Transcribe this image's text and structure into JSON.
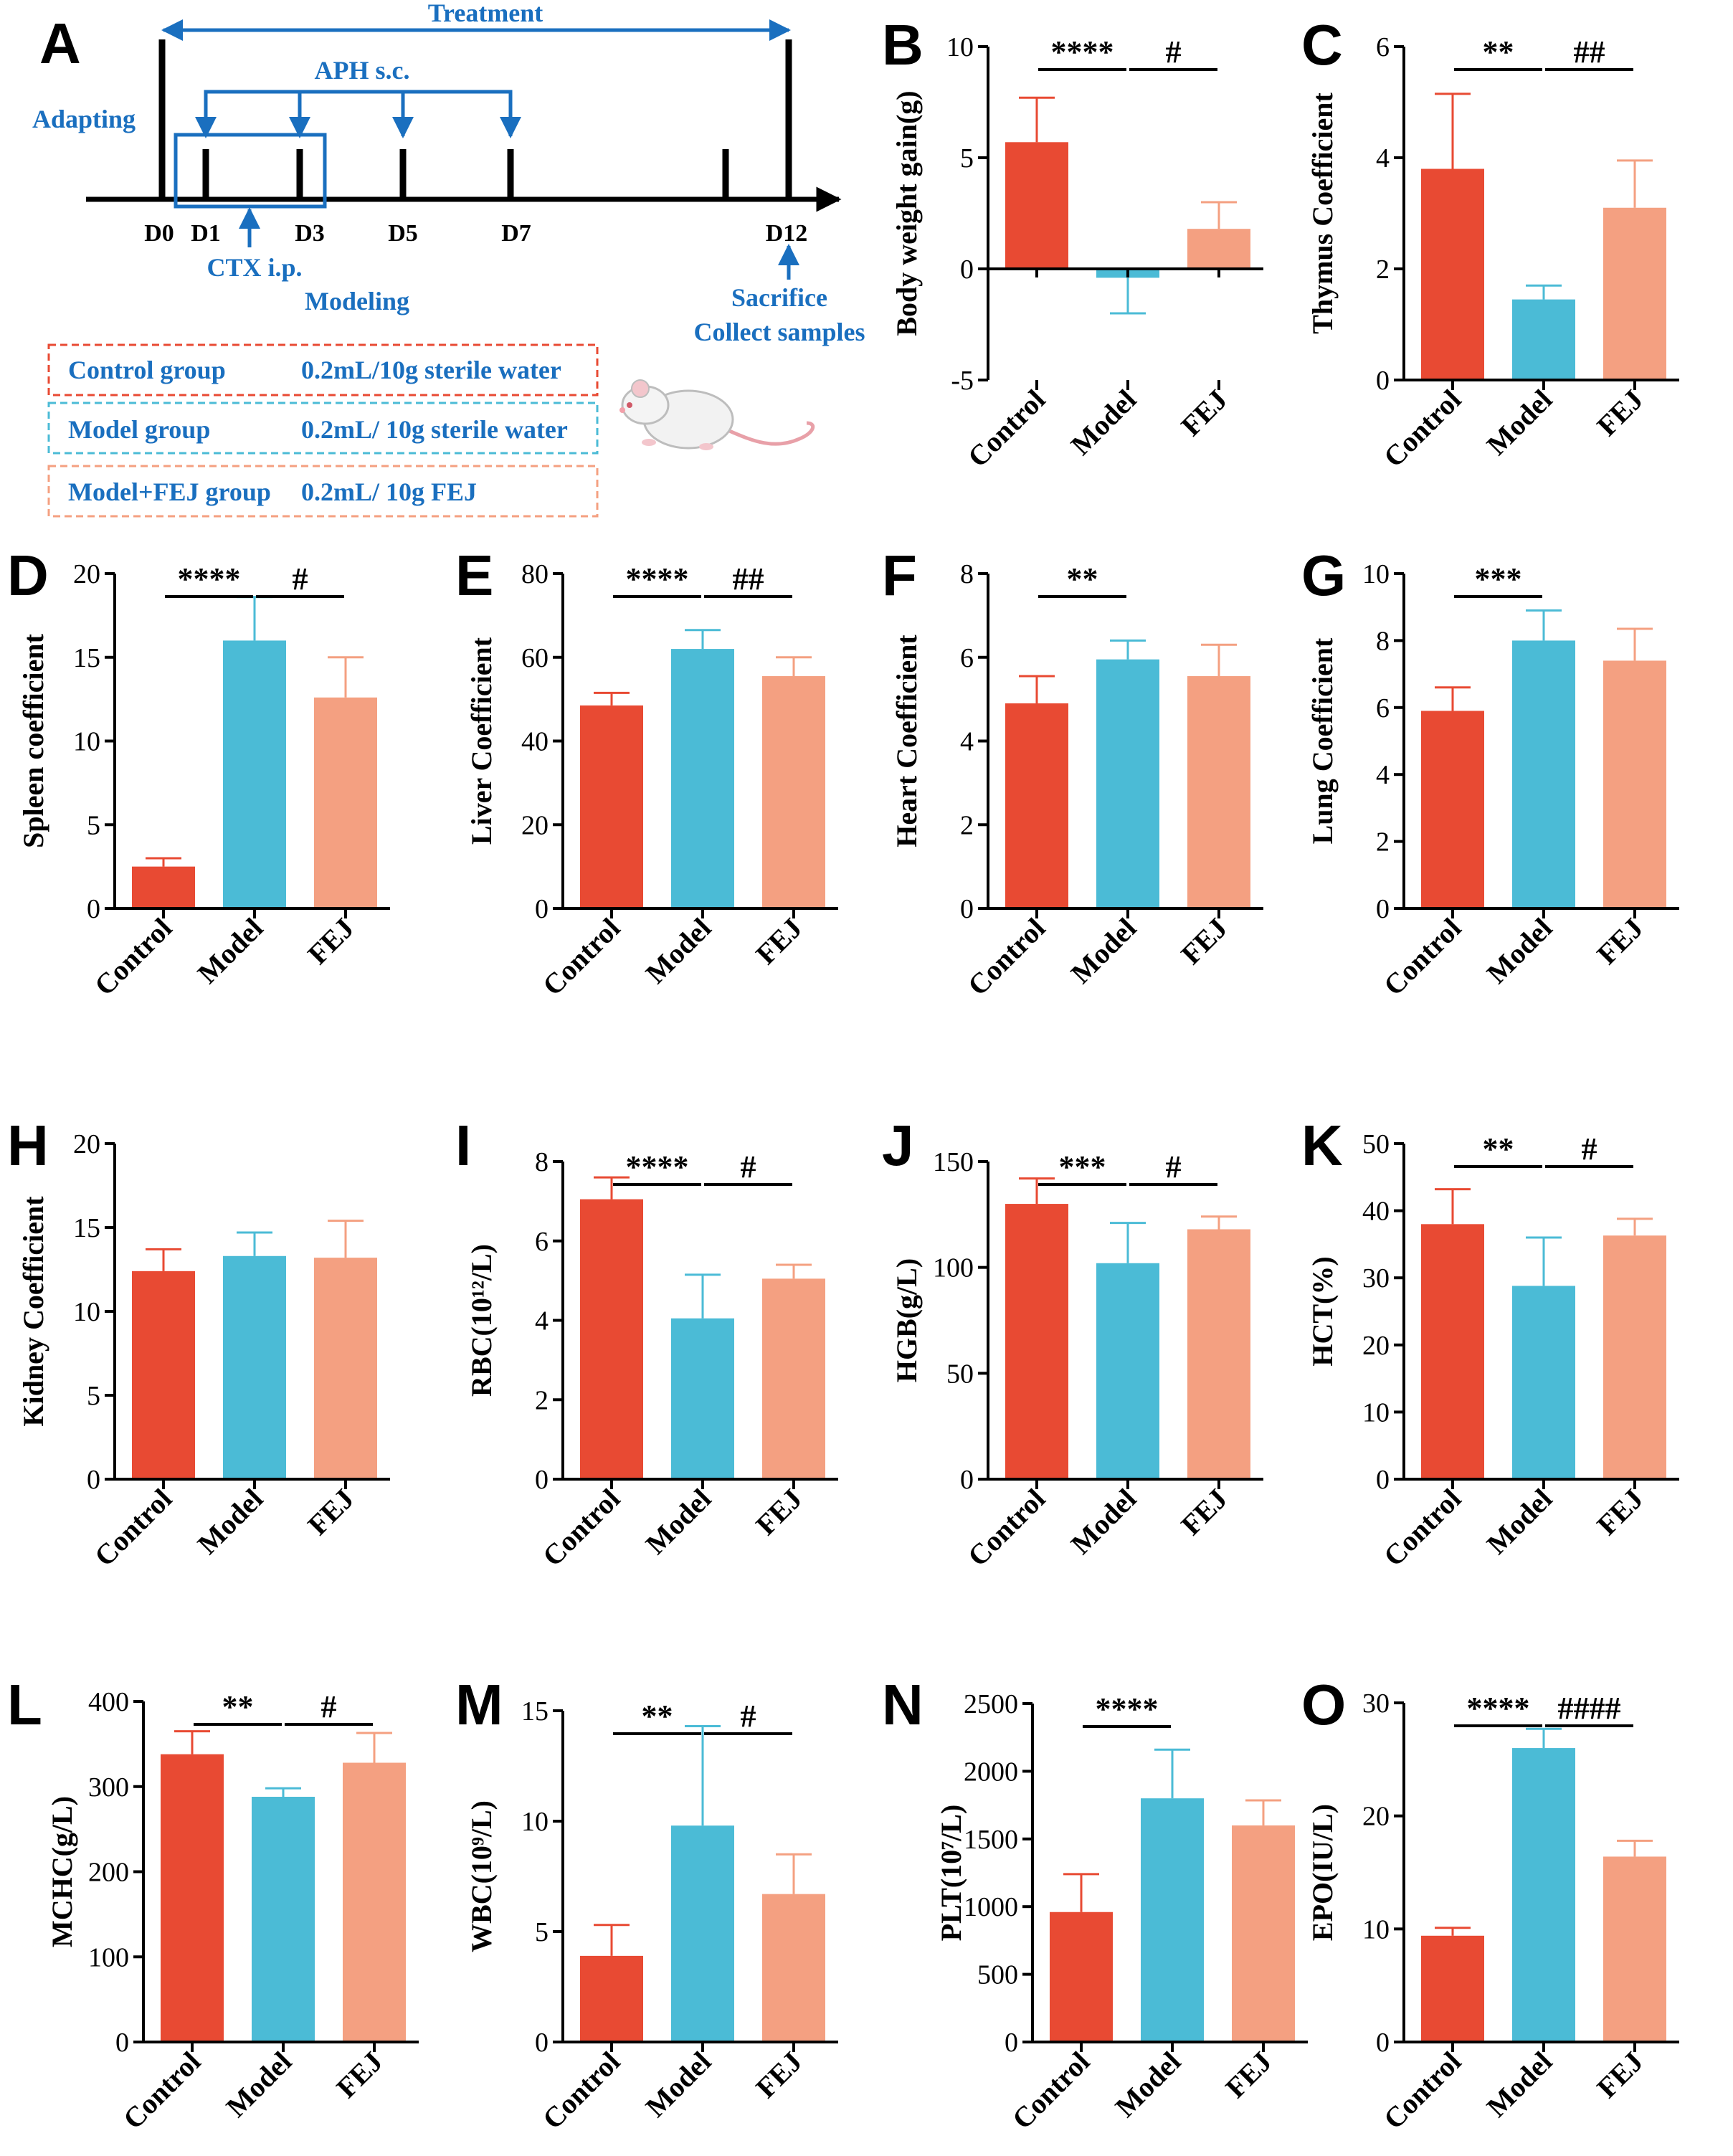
{
  "colors": {
    "control": "#e84a33",
    "model": "#4bbbd6",
    "fej": "#f4a081",
    "scheme_blue": "#1a6fbf",
    "box_control": "#e84a33",
    "box_model": "#4bbbd6",
    "box_fej": "#f4a081"
  },
  "scheme": {
    "letter": "A",
    "treatment": "Treatment",
    "aph": "APH  s.c.",
    "adapting": "Adapting",
    "ctx": "CTX i.p.",
    "modeling": "Modeling",
    "sacrifice": "Sacrifice",
    "collect": "Collect samples",
    "days": [
      "D0",
      "D1",
      "D3",
      "D5",
      "D7",
      "D12"
    ],
    "groups": [
      {
        "name": "Control group",
        "dose": "0.2mL/10g sterile water"
      },
      {
        "name": "Model group",
        "dose": "0.2mL/ 10g sterile water"
      },
      {
        "name": "Model+FEJ group",
        "dose": "0.2mL/ 10g FEJ"
      }
    ]
  },
  "chart_data": [
    {
      "letter": "B",
      "type": "bar",
      "ylabel": "Body weight gain(g)",
      "categories": [
        "Control",
        "Model",
        "FEJ"
      ],
      "values": [
        5.7,
        -0.4,
        1.8
      ],
      "errors": [
        2.0,
        1.6,
        1.2
      ],
      "ylim": [
        -5,
        10
      ],
      "yticks": [
        "-5",
        "0",
        "5",
        "10"
      ],
      "sig": [
        {
          "text": "****",
          "from": 0,
          "to": 1
        },
        {
          "text": "#",
          "from": 1,
          "to": 2
        }
      ]
    },
    {
      "letter": "C",
      "type": "bar",
      "ylabel": "Thymus Coefficient",
      "categories": [
        "Control",
        "Model",
        "FEJ"
      ],
      "values": [
        3.8,
        1.45,
        3.1
      ],
      "errors": [
        1.35,
        0.25,
        0.85
      ],
      "ylim": [
        0,
        6
      ],
      "yticks": [
        "0",
        "2",
        "4",
        "6"
      ],
      "sig": [
        {
          "text": "**",
          "from": 0,
          "to": 1
        },
        {
          "text": "##",
          "from": 1,
          "to": 2
        }
      ]
    },
    {
      "letter": "D",
      "type": "bar",
      "ylabel": "Spleen coefficient",
      "categories": [
        "Control",
        "Model",
        "FEJ"
      ],
      "values": [
        2.5,
        16.0,
        12.6
      ],
      "errors": [
        0.5,
        2.6,
        2.4
      ],
      "ylim": [
        0,
        20
      ],
      "yticks": [
        "0",
        "5",
        "10",
        "15",
        "20"
      ],
      "sig": [
        {
          "text": "****",
          "from": 0,
          "to": 1
        },
        {
          "text": "#",
          "from": 1,
          "to": 2
        }
      ]
    },
    {
      "letter": "E",
      "type": "bar",
      "ylabel": "Liver Coefficient",
      "categories": [
        "Control",
        "Model",
        "FEJ"
      ],
      "values": [
        48.5,
        62.0,
        55.5
      ],
      "errors": [
        3.0,
        4.5,
        4.5
      ],
      "ylim": [
        0,
        80
      ],
      "yticks": [
        "0",
        "20",
        "40",
        "60",
        "80"
      ],
      "sig": [
        {
          "text": "****",
          "from": 0,
          "to": 1
        },
        {
          "text": "##",
          "from": 1,
          "to": 2
        }
      ]
    },
    {
      "letter": "F",
      "type": "bar",
      "ylabel": "Heart Coefficient",
      "categories": [
        "Control",
        "Model",
        "FEJ"
      ],
      "values": [
        4.9,
        5.95,
        5.55
      ],
      "errors": [
        0.65,
        0.45,
        0.75
      ],
      "ylim": [
        0,
        8
      ],
      "yticks": [
        "0",
        "2",
        "4",
        "6",
        "8"
      ],
      "sig": [
        {
          "text": "**",
          "from": 0,
          "to": 1
        }
      ]
    },
    {
      "letter": "G",
      "type": "bar",
      "ylabel": "Lung Coefficient",
      "categories": [
        "Control",
        "Model",
        "FEJ"
      ],
      "values": [
        5.9,
        8.0,
        7.4
      ],
      "errors": [
        0.7,
        0.9,
        0.95
      ],
      "ylim": [
        0,
        10
      ],
      "yticks": [
        "0",
        "2",
        "4",
        "6",
        "8",
        "10"
      ],
      "sig": [
        {
          "text": "***",
          "from": 0,
          "to": 1
        }
      ]
    },
    {
      "letter": "H",
      "type": "bar",
      "ylabel": "Kidney Coefficient",
      "categories": [
        "Control",
        "Model",
        "FEJ"
      ],
      "values": [
        12.4,
        13.3,
        13.2
      ],
      "errors": [
        1.3,
        1.4,
        2.2
      ],
      "ylim": [
        0,
        20
      ],
      "yticks": [
        "0",
        "5",
        "10",
        "15",
        "20"
      ],
      "sig": []
    },
    {
      "letter": "I",
      "type": "bar",
      "ylabel": "RBC(10¹²/L)",
      "categories": [
        "Control",
        "Model",
        "FEJ"
      ],
      "values": [
        7.05,
        4.05,
        5.05
      ],
      "errors": [
        0.55,
        1.1,
        0.35
      ],
      "ylim": [
        0,
        8
      ],
      "yticks": [
        "0",
        "2",
        "4",
        "6",
        "8"
      ],
      "sig": [
        {
          "text": "****",
          "from": 0,
          "to": 1
        },
        {
          "text": "#",
          "from": 1,
          "to": 2
        }
      ]
    },
    {
      "letter": "J",
      "type": "bar",
      "ylabel": "HGB(g/L)",
      "categories": [
        "Control",
        "Model",
        "FEJ"
      ],
      "values": [
        130,
        102,
        118
      ],
      "errors": [
        12,
        19,
        6
      ],
      "ylim": [
        0,
        150
      ],
      "yticks": [
        "0",
        "50",
        "100",
        "150"
      ],
      "sig": [
        {
          "text": "***",
          "from": 0,
          "to": 1
        },
        {
          "text": "#",
          "from": 1,
          "to": 2
        }
      ]
    },
    {
      "letter": "K",
      "type": "bar",
      "ylabel": "HCT(%)",
      "categories": [
        "Control",
        "Model",
        "FEJ"
      ],
      "values": [
        38,
        28.8,
        36.3
      ],
      "errors": [
        5.2,
        7.2,
        2.5
      ],
      "ylim": [
        0,
        50
      ],
      "yticks": [
        "0",
        "10",
        "20",
        "30",
        "40",
        "50"
      ],
      "sig": [
        {
          "text": "**",
          "from": 0,
          "to": 1
        },
        {
          "text": "#",
          "from": 1,
          "to": 2
        }
      ]
    },
    {
      "letter": "L",
      "type": "bar",
      "ylabel": "MCHC(g/L)",
      "categories": [
        "Control",
        "Model",
        "FEJ"
      ],
      "values": [
        338,
        288,
        328
      ],
      "errors": [
        27,
        10,
        35
      ],
      "ylim": [
        0,
        400
      ],
      "yticks": [
        "0",
        "100",
        "200",
        "300",
        "400"
      ],
      "sig": [
        {
          "text": "**",
          "from": 0,
          "to": 1
        },
        {
          "text": "#",
          "from": 1,
          "to": 2
        }
      ]
    },
    {
      "letter": "M",
      "type": "bar",
      "ylabel": "WBC(10⁹/L)",
      "categories": [
        "Control",
        "Model",
        "FEJ"
      ],
      "values": [
        3.9,
        9.8,
        6.7
      ],
      "errors": [
        1.4,
        4.5,
        1.8
      ],
      "ylim": [
        0,
        15
      ],
      "yticks": [
        "0",
        "5",
        "10",
        "15"
      ],
      "sig": [
        {
          "text": "**",
          "from": 0,
          "to": 1
        },
        {
          "text": "#",
          "from": 1,
          "to": 2
        }
      ]
    },
    {
      "letter": "N",
      "type": "bar",
      "ylabel": "PLT(10⁷/L)",
      "categories": [
        "Control",
        "Model",
        "FEJ"
      ],
      "values": [
        960,
        1800,
        1600
      ],
      "errors": [
        280,
        360,
        185
      ],
      "ylim": [
        0,
        2500
      ],
      "yticks": [
        "0",
        "500",
        "1000",
        "1500",
        "2000",
        "2500"
      ],
      "sig": [
        {
          "text": "****",
          "from": 0,
          "to": 1
        }
      ]
    },
    {
      "letter": "O",
      "type": "bar",
      "ylabel": "EPO(IU/L)",
      "categories": [
        "Control",
        "Model",
        "FEJ"
      ],
      "values": [
        9.4,
        26.0,
        16.4
      ],
      "errors": [
        0.7,
        1.7,
        1.4
      ],
      "ylim": [
        0,
        30
      ],
      "yticks": [
        "0",
        "10",
        "20",
        "30"
      ],
      "sig": [
        {
          "text": "****",
          "from": 0,
          "to": 1
        },
        {
          "text": "####",
          "from": 1,
          "to": 2
        }
      ]
    }
  ]
}
